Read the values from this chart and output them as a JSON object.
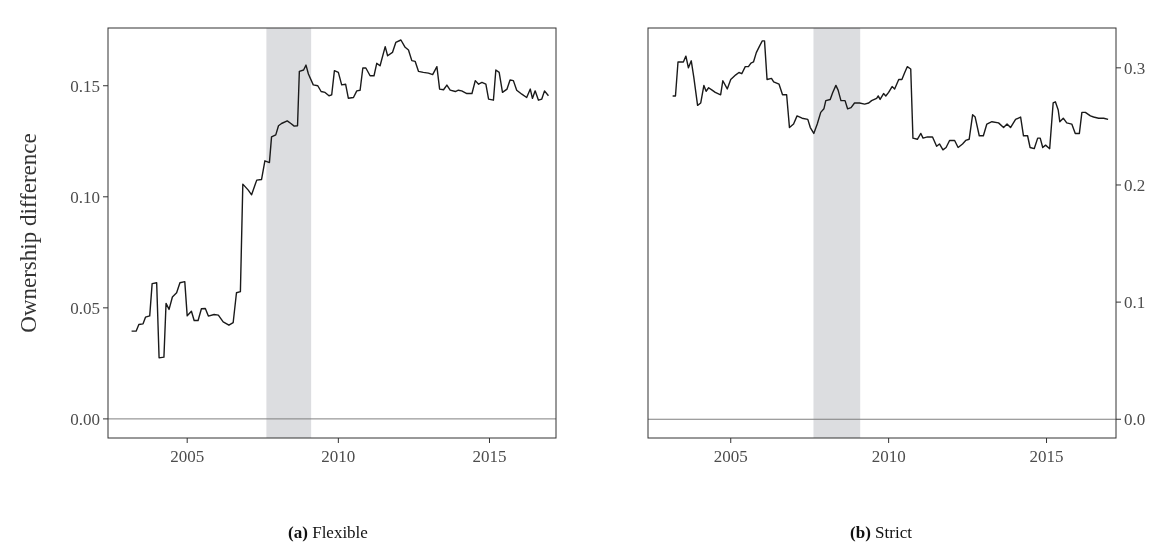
{
  "chart_data": [
    {
      "type": "line",
      "title": "(a) Flexible",
      "ylabel": "Ownership difference",
      "xlim": [
        2002.38,
        2017.2
      ],
      "xticks": [
        2005,
        2010,
        2015
      ],
      "ylim": [
        -0.0086,
        0.176
      ],
      "yticks": [
        {
          "value": 0,
          "label": "0.00"
        },
        {
          "value": 0.05,
          "label": "0.05"
        },
        {
          "value": 0.1,
          "label": "0.10"
        },
        {
          "value": 0.15,
          "label": "0.15"
        }
      ],
      "grid": false,
      "ref_lines": [
        {
          "axis": "y",
          "value": 0,
          "color": "#7f7f7f"
        }
      ],
      "bands": [
        {
          "axis": "x",
          "from": 2007.62,
          "to": 2009.1,
          "color": "#dcdde0"
        }
      ],
      "series": [
        {
          "color": "#1a1a1a",
          "x": [
            2003.16,
            2003.31,
            2003.4,
            2003.54,
            2003.62,
            2003.76,
            2003.84,
            2003.99,
            2004.07,
            2004.23,
            2004.3,
            2004.4,
            2004.51,
            2004.65,
            2004.76,
            2004.92,
            2005.0,
            2005.14,
            2005.23,
            2005.36,
            2005.47,
            2005.6,
            2005.7,
            2005.89,
            2006.03,
            2006.19,
            2006.38,
            2006.52,
            2006.63,
            2006.76,
            2006.84,
            2007.02,
            2007.13,
            2007.3,
            2007.46,
            2007.57,
            2007.72,
            2007.79,
            2007.93,
            2008.02,
            2008.12,
            2008.31,
            2008.43,
            2008.54,
            2008.65,
            2008.71,
            2008.85,
            2008.93,
            2009.01,
            2009.17,
            2009.32,
            2009.43,
            2009.56,
            2009.69,
            2009.78,
            2009.87,
            2010.0,
            2010.11,
            2010.24,
            2010.33,
            2010.5,
            2010.61,
            2010.72,
            2010.81,
            2010.91,
            2011.05,
            2011.18,
            2011.27,
            2011.38,
            2011.55,
            2011.63,
            2011.79,
            2011.9,
            2012.07,
            2012.21,
            2012.32,
            2012.43,
            2012.54,
            2012.65,
            2012.81,
            2012.98,
            2013.12,
            2013.26,
            2013.35,
            2013.48,
            2013.59,
            2013.7,
            2013.87,
            2013.97,
            2014.08,
            2014.25,
            2014.42,
            2014.53,
            2014.64,
            2014.75,
            2014.88,
            2014.97,
            2015.13,
            2015.21,
            2015.32,
            2015.43,
            2015.58,
            2015.68,
            2015.79,
            2015.9,
            2016.07,
            2016.23,
            2016.35,
            2016.42,
            2016.51,
            2016.62,
            2016.73,
            2016.82,
            2016.95
          ],
          "values": [
            0.0395,
            0.0395,
            0.0425,
            0.0428,
            0.0458,
            0.0464,
            0.0609,
            0.0613,
            0.0275,
            0.0278,
            0.052,
            0.0493,
            0.0549,
            0.0568,
            0.0613,
            0.0618,
            0.0464,
            0.0485,
            0.0443,
            0.0443,
            0.0496,
            0.0497,
            0.0463,
            0.047,
            0.0467,
            0.0437,
            0.0422,
            0.0433,
            0.0568,
            0.0573,
            0.1057,
            0.103,
            0.1009,
            0.1075,
            0.1078,
            0.1162,
            0.1154,
            0.127,
            0.1279,
            0.132,
            0.133,
            0.1342,
            0.133,
            0.1318,
            0.132,
            0.1565,
            0.1571,
            0.1593,
            0.1553,
            0.1504,
            0.15,
            0.1474,
            0.147,
            0.1455,
            0.1459,
            0.1568,
            0.156,
            0.1504,
            0.1507,
            0.1444,
            0.1447,
            0.1477,
            0.148,
            0.158,
            0.158,
            0.1545,
            0.1545,
            0.1601,
            0.159,
            0.1676,
            0.1635,
            0.165,
            0.1695,
            0.1706,
            0.1673,
            0.1661,
            0.1613,
            0.161,
            0.1565,
            0.156,
            0.1557,
            0.155,
            0.1586,
            0.1485,
            0.1482,
            0.1503,
            0.148,
            0.1474,
            0.148,
            0.1477,
            0.1465,
            0.1465,
            0.1523,
            0.1507,
            0.1515,
            0.1507,
            0.144,
            0.1435,
            0.1571,
            0.156,
            0.147,
            0.1485,
            0.1526,
            0.1523,
            0.148,
            0.1462,
            0.1447,
            0.1485,
            0.1443,
            0.1477,
            0.1435,
            0.144,
            0.1477,
            0.1455
          ]
        }
      ]
    },
    {
      "type": "line",
      "title": "(b) Strict",
      "xlim": [
        2002.38,
        2017.2
      ],
      "xticks": [
        2005,
        2010,
        2015
      ],
      "y2lim": [
        -0.016,
        0.334
      ],
      "y2ticks": [
        {
          "value": 0,
          "label": "0.0"
        },
        {
          "value": 0.1,
          "label": "0.1"
        },
        {
          "value": 0.2,
          "label": "0.2"
        },
        {
          "value": 0.3,
          "label": "0.3"
        }
      ],
      "grid": false,
      "ref_lines": [
        {
          "axis": "y2",
          "value": 0,
          "color": "#7f7f7f"
        }
      ],
      "bands": [
        {
          "axis": "x",
          "from": 2007.62,
          "to": 2009.1,
          "color": "#dcdde0"
        }
      ],
      "series": [
        {
          "color": "#1a1a1a",
          "axis": "y2",
          "x": [
            2003.16,
            2003.25,
            2003.33,
            2003.5,
            2003.58,
            2003.66,
            2003.75,
            2003.83,
            2003.95,
            2004.05,
            2004.15,
            2004.22,
            2004.3,
            2004.41,
            2004.51,
            2004.68,
            2004.75,
            2004.89,
            2005.0,
            2005.16,
            2005.26,
            2005.35,
            2005.46,
            2005.56,
            2005.64,
            2005.72,
            2005.81,
            2005.92,
            2006.0,
            2006.07,
            2006.15,
            2006.29,
            2006.36,
            2006.53,
            2006.64,
            2006.77,
            2006.86,
            2006.99,
            2007.1,
            2007.26,
            2007.44,
            2007.52,
            2007.63,
            2007.74,
            2007.85,
            2007.95,
            2008.01,
            2008.15,
            2008.23,
            2008.33,
            2008.4,
            2008.49,
            2008.62,
            2008.7,
            2008.81,
            2008.92,
            2009.08,
            2009.24,
            2009.37,
            2009.46,
            2009.62,
            2009.67,
            2009.73,
            2009.84,
            2009.91,
            2010.0,
            2010.11,
            2010.19,
            2010.32,
            2010.42,
            2010.51,
            2010.59,
            2010.7,
            2010.77,
            2010.91,
            2011.02,
            2011.09,
            2011.23,
            2011.39,
            2011.52,
            2011.61,
            2011.72,
            2011.82,
            2011.93,
            2012.09,
            2012.2,
            2012.34,
            2012.44,
            2012.55,
            2012.66,
            2012.74,
            2012.87,
            2013.0,
            2013.11,
            2013.27,
            2013.48,
            2013.64,
            2013.75,
            2013.86,
            2014.02,
            2014.18,
            2014.27,
            2014.4,
            2014.48,
            2014.61,
            2014.72,
            2014.8,
            2014.88,
            2014.97,
            2015.1,
            2015.21,
            2015.28,
            2015.37,
            2015.42,
            2015.53,
            2015.64,
            2015.8,
            2015.91,
            2016.04,
            2016.12,
            2016.23,
            2016.39,
            2016.49,
            2016.65,
            2016.81,
            2016.95
          ],
          "values": [
            0.276,
            0.276,
            0.305,
            0.305,
            0.31,
            0.3,
            0.306,
            0.292,
            0.268,
            0.27,
            0.285,
            0.28,
            0.283,
            0.281,
            0.279,
            0.277,
            0.289,
            0.282,
            0.29,
            0.294,
            0.296,
            0.295,
            0.301,
            0.301,
            0.304,
            0.305,
            0.313,
            0.319,
            0.323,
            0.323,
            0.29,
            0.291,
            0.288,
            0.286,
            0.277,
            0.277,
            0.249,
            0.252,
            0.259,
            0.257,
            0.256,
            0.249,
            0.244,
            0.252,
            0.262,
            0.265,
            0.272,
            0.273,
            0.279,
            0.285,
            0.281,
            0.272,
            0.272,
            0.265,
            0.266,
            0.27,
            0.27,
            0.269,
            0.27,
            0.272,
            0.274,
            0.276,
            0.273,
            0.278,
            0.276,
            0.279,
            0.284,
            0.282,
            0.29,
            0.29,
            0.296,
            0.301,
            0.299,
            0.24,
            0.239,
            0.244,
            0.24,
            0.241,
            0.241,
            0.233,
            0.235,
            0.23,
            0.232,
            0.238,
            0.238,
            0.232,
            0.235,
            0.238,
            0.239,
            0.26,
            0.258,
            0.242,
            0.242,
            0.252,
            0.254,
            0.253,
            0.249,
            0.252,
            0.249,
            0.256,
            0.258,
            0.242,
            0.242,
            0.232,
            0.231,
            0.24,
            0.24,
            0.232,
            0.234,
            0.231,
            0.27,
            0.271,
            0.264,
            0.254,
            0.257,
            0.253,
            0.252,
            0.244,
            0.244,
            0.262,
            0.262,
            0.259,
            0.258,
            0.257,
            0.257,
            0.256
          ]
        }
      ]
    }
  ]
}
